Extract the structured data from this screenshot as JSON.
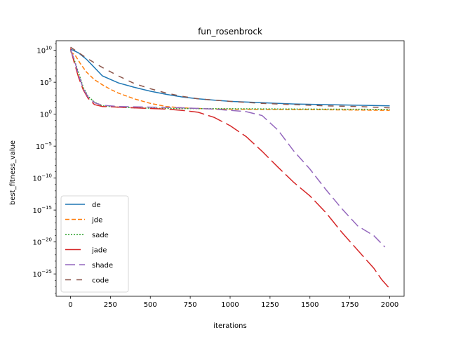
{
  "chart_data": {
    "type": "line",
    "title": "fun_rosenbrock",
    "xlabel": "iterations",
    "ylabel": "best_fitness_value",
    "yscale": "log",
    "xlim": [
      -90,
      2090
    ],
    "ylim_log10": [
      -28.5,
      11.5
    ],
    "x_ticks": [
      0,
      250,
      500,
      750,
      1000,
      1250,
      1500,
      1750,
      2000
    ],
    "y_ticks": [
      {
        "exp": 10,
        "label": "10",
        "sup": "10"
      },
      {
        "exp": 5,
        "label": "10",
        "sup": "5"
      },
      {
        "exp": 0,
        "label": "10",
        "sup": "0",
        "plain": "10"
      },
      {
        "exp": -5,
        "label": "10",
        "sup": "−5"
      },
      {
        "exp": -10,
        "label": "10",
        "sup": "−10"
      },
      {
        "exp": -15,
        "label": "10",
        "sup": "−15"
      },
      {
        "exp": -20,
        "label": "10",
        "sup": "−20"
      },
      {
        "exp": -25,
        "label": "10",
        "sup": "−25"
      }
    ],
    "y_tick_label_0": "10",
    "legend_position": "lower left",
    "series": [
      {
        "name": "de",
        "color": "#1f77b4",
        "dash": "",
        "points": [
          [
            0,
            10.2
          ],
          [
            50,
            9.6
          ],
          [
            100,
            8.6
          ],
          [
            150,
            7.3
          ],
          [
            200,
            6.0
          ],
          [
            300,
            4.9
          ],
          [
            400,
            4.2
          ],
          [
            500,
            3.6
          ],
          [
            600,
            3.1
          ],
          [
            700,
            2.7
          ],
          [
            800,
            2.4
          ],
          [
            900,
            2.2
          ],
          [
            1000,
            2.0
          ],
          [
            1200,
            1.8
          ],
          [
            1400,
            1.6
          ],
          [
            1600,
            1.5
          ],
          [
            1800,
            1.4
          ],
          [
            2000,
            1.3
          ]
        ]
      },
      {
        "name": "jde",
        "color": "#ff7f0e",
        "dash": "6,3",
        "points": [
          [
            0,
            9.8
          ],
          [
            30,
            9.2
          ],
          [
            60,
            8.0
          ],
          [
            100,
            6.6
          ],
          [
            150,
            5.4
          ],
          [
            200,
            4.6
          ],
          [
            250,
            3.9
          ],
          [
            300,
            3.3
          ],
          [
            400,
            2.4
          ],
          [
            500,
            1.7
          ],
          [
            600,
            1.2
          ],
          [
            700,
            1.0
          ],
          [
            900,
            0.8
          ],
          [
            1200,
            0.75
          ],
          [
            1600,
            0.7
          ],
          [
            2000,
            0.6
          ]
        ]
      },
      {
        "name": "sade",
        "color": "#2ca02c",
        "dash": "2,2",
        "points": [
          [
            0,
            10.0
          ],
          [
            20,
            8.8
          ],
          [
            50,
            6.5
          ],
          [
            80,
            4.2
          ],
          [
            110,
            2.8
          ],
          [
            150,
            1.9
          ],
          [
            200,
            1.3
          ],
          [
            300,
            1.1
          ],
          [
            400,
            1.0
          ],
          [
            600,
            0.9
          ],
          [
            1000,
            0.85
          ],
          [
            1500,
            0.8
          ],
          [
            2000,
            0.75
          ]
        ]
      },
      {
        "name": "jade",
        "color": "#d62728",
        "dash": "22,6",
        "points": [
          [
            0,
            10.3
          ],
          [
            20,
            8.4
          ],
          [
            50,
            5.8
          ],
          [
            80,
            3.8
          ],
          [
            110,
            2.5
          ],
          [
            150,
            1.5
          ],
          [
            200,
            1.2
          ],
          [
            300,
            1.1
          ],
          [
            400,
            1.0
          ],
          [
            500,
            0.9
          ],
          [
            600,
            0.8
          ],
          [
            700,
            0.6
          ],
          [
            800,
            0.3
          ],
          [
            900,
            -0.5
          ],
          [
            1000,
            -1.8
          ],
          [
            1100,
            -3.5
          ],
          [
            1200,
            -5.8
          ],
          [
            1300,
            -8.3
          ],
          [
            1400,
            -10.7
          ],
          [
            1500,
            -12.8
          ],
          [
            1600,
            -15.4
          ],
          [
            1700,
            -18.5
          ],
          [
            1800,
            -21.3
          ],
          [
            1900,
            -24.1
          ],
          [
            1950,
            -25.9
          ],
          [
            2000,
            -27.3
          ]
        ]
      },
      {
        "name": "shade",
        "color": "#9467bd",
        "dash": "14,6",
        "points": [
          [
            0,
            10.1
          ],
          [
            20,
            8.8
          ],
          [
            50,
            6.2
          ],
          [
            80,
            4.0
          ],
          [
            110,
            2.7
          ],
          [
            150,
            1.8
          ],
          [
            200,
            1.4
          ],
          [
            300,
            1.2
          ],
          [
            500,
            1.1
          ],
          [
            700,
            1.0
          ],
          [
            900,
            0.8
          ],
          [
            1000,
            0.6
          ],
          [
            1100,
            0.4
          ],
          [
            1200,
            -0.2
          ],
          [
            1300,
            -2.5
          ],
          [
            1400,
            -5.8
          ],
          [
            1500,
            -8.6
          ],
          [
            1600,
            -11.8
          ],
          [
            1700,
            -14.8
          ],
          [
            1800,
            -17.5
          ],
          [
            1900,
            -19.0
          ],
          [
            1970,
            -20.8
          ]
        ]
      },
      {
        "name": "code",
        "color": "#8c564b",
        "dash": "8,8",
        "points": [
          [
            0,
            10.5
          ],
          [
            100,
            8.8
          ],
          [
            200,
            7.3
          ],
          [
            300,
            6.0
          ],
          [
            400,
            4.8
          ],
          [
            500,
            4.0
          ],
          [
            600,
            3.3
          ],
          [
            700,
            2.8
          ],
          [
            800,
            2.4
          ],
          [
            1000,
            2.0
          ],
          [
            1200,
            1.7
          ],
          [
            1400,
            1.5
          ],
          [
            1600,
            1.3
          ],
          [
            1800,
            1.2
          ],
          [
            2000,
            1.0
          ]
        ]
      }
    ]
  }
}
